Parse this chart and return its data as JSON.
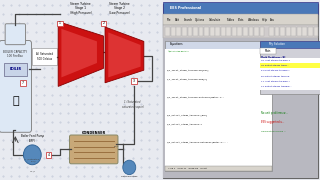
{
  "bg_left": "#e8eaf0",
  "bg_right": "#c8c8c8",
  "grid_color": "#b0b8cc",
  "boiler_fill": "#dde8f5",
  "boiler_edge": "#888888",
  "turbine_fill": "#cc1111",
  "turbine_edge": "#880000",
  "turbine_light": "#ff6666",
  "condenser_fill": "#c8a878",
  "condenser_stripe": "#9a7040",
  "pipe_color": "#444444",
  "node_fill": "#ffffff",
  "node_edge": "#cc4444",
  "pump_fill": "#5588bb",
  "pump_edge": "#336699",
  "ees_outer_bg": "#a0a0a8",
  "ees_titlebar": "#4a78b8",
  "ees_titlebar_text": "#ffffff",
  "ees_menu_bg": "#d8d4cc",
  "ees_toolbar_bg": "#d0cccc",
  "ees_body_bg": "#b8b8c0",
  "ees_eq_bg": "#ffffff",
  "ees_eq_title_bg": "#d0d8e8",
  "ees_sol_bg": "#ffffff",
  "ees_sol_title_bg": "#4a78b8",
  "ees_sol_title_text": "#ffffff",
  "ees_sol_tab_bg": "#ffffff",
  "ees_code_green": "#007700",
  "ees_code_black": "#000000",
  "ees_sol_blue": "#0000aa",
  "ees_sol_yellow_hi": "#ffff44",
  "ees_problems_color": "#00aa00",
  "ees_suggested_color": "#cc0000",
  "status_bg": "#d0d4cc"
}
